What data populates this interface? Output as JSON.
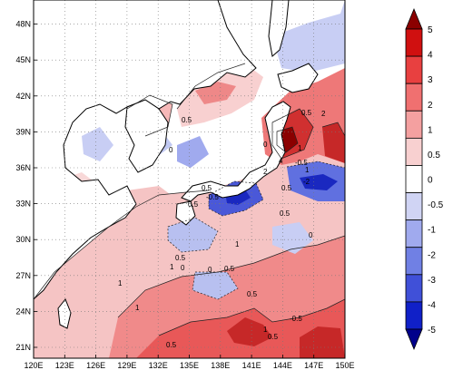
{
  "map": {
    "longitude_labels": [
      "120E",
      "123E",
      "126E",
      "129E",
      "132E",
      "135E",
      "138E",
      "141E",
      "144E",
      "147E",
      "150E"
    ],
    "latitude_labels": [
      "21N",
      "24N",
      "27N",
      "30N",
      "33N",
      "36N",
      "39N",
      "42N",
      "45N",
      "48N"
    ],
    "contour_labels": [
      "0.5",
      "0",
      "0.5",
      "0.5",
      "0",
      "1",
      "4",
      "-0.5",
      "2",
      "0.5",
      "1",
      "-2",
      "-0.5",
      "0.5",
      "0.5",
      "0",
      "1",
      "1",
      "0.5",
      "0",
      "1",
      "0.5",
      "1",
      "-0.5",
      "0.5",
      "1",
      "0.5",
      "0",
      "0.5",
      "2"
    ]
  },
  "colorbar": {
    "labels": [
      "5",
      "4",
      "3",
      "2",
      "1",
      "0.5",
      "0",
      "-0.5",
      "-1",
      "-2",
      "-3",
      "-4",
      "-5"
    ],
    "colors": [
      "#8b0000",
      "#d01010",
      "#e84040",
      "#f07070",
      "#f4a0a0",
      "#f8d0d0",
      "#ffffff",
      "#d0d4f4",
      "#a0aaee",
      "#7080e4",
      "#4050d8",
      "#1020c8",
      "#00008b"
    ]
  }
}
